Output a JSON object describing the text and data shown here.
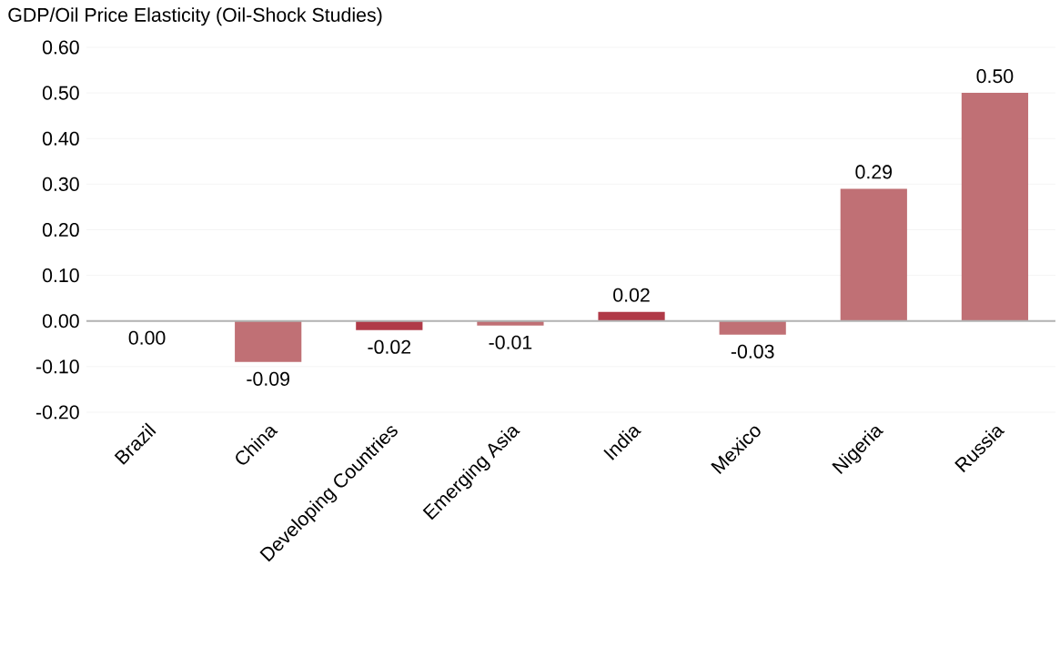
{
  "chart_data": {
    "type": "bar",
    "title": "GDP/Oil Price Elasticity (Oil-Shock Studies)",
    "categories": [
      "Brazil",
      "China",
      "Developing Countries",
      "Emerging Asia",
      "India",
      "Mexico",
      "Nigeria",
      "Russia"
    ],
    "values": [
      0.0,
      -0.09,
      -0.02,
      -0.01,
      0.02,
      -0.03,
      0.29,
      0.5
    ],
    "colors": [
      "#c07075",
      "#c07075",
      "#b03a48",
      "#c07075",
      "#b03a48",
      "#c07075",
      "#c07075",
      "#c07075"
    ],
    "value_labels": [
      "0.00",
      "-0.09",
      "-0.02",
      "-0.01",
      "0.02",
      "-0.03",
      "0.29",
      "0.50"
    ],
    "ylim": [
      -0.2,
      0.6
    ],
    "yticks": [
      {
        "value": -0.2,
        "label": "-0.20"
      },
      {
        "value": -0.1,
        "label": "-0.10"
      },
      {
        "value": 0.0,
        "label": "0.00"
      },
      {
        "value": 0.1,
        "label": "0.10"
      },
      {
        "value": 0.2,
        "label": "0.20"
      },
      {
        "value": 0.3,
        "label": "0.30"
      },
      {
        "value": 0.4,
        "label": "0.40"
      },
      {
        "value": 0.5,
        "label": "0.50"
      },
      {
        "value": 0.6,
        "label": "0.60"
      }
    ],
    "grid": "y"
  }
}
